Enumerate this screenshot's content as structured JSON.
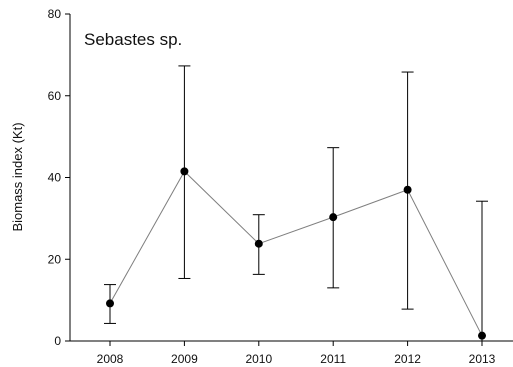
{
  "chart_data": {
    "type": "line",
    "title": "Sebastes sp.",
    "xlabel": "",
    "ylabel": "Biomass index (Kt)",
    "x": [
      "2008",
      "2009",
      "2010",
      "2011",
      "2012",
      "2013"
    ],
    "ylim": [
      0,
      80
    ],
    "yticks": [
      0,
      20,
      40,
      60,
      80
    ],
    "grid": false,
    "legend": "none",
    "series": [
      {
        "values": [
          9.2,
          41.5,
          23.8,
          30.3,
          37.0,
          1.3
        ],
        "error_low": [
          4.3,
          15.3,
          16.3,
          13.0,
          7.8,
          0.0
        ],
        "error_high": [
          13.8,
          67.3,
          30.9,
          47.3,
          65.8,
          34.2
        ],
        "color": "#7f7f7f",
        "marker_color": "#000000"
      }
    ]
  }
}
